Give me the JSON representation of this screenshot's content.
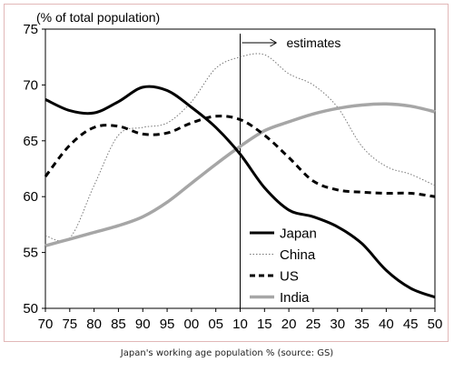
{
  "caption": "Japan's working age population % (source: GS)",
  "chart_data": {
    "type": "line",
    "title": "",
    "ylabel": "(% of total population)",
    "xlabel": "",
    "annotation": "estimates",
    "annotation_at": 2010,
    "x_tick_labels": [
      "70",
      "75",
      "80",
      "85",
      "90",
      "95",
      "00",
      "05",
      "10",
      "15",
      "20",
      "25",
      "30",
      "35",
      "40",
      "45",
      "50"
    ],
    "x_ticks": [
      1970,
      1975,
      1980,
      1985,
      1990,
      1995,
      2000,
      2005,
      2010,
      2015,
      2020,
      2025,
      2030,
      2035,
      2040,
      2045,
      2050
    ],
    "y_ticks": [
      50,
      55,
      60,
      65,
      70,
      75
    ],
    "xlim": [
      1970,
      2050
    ],
    "ylim": [
      50,
      75
    ],
    "legend_position": "lower-right",
    "x": [
      1970,
      1975,
      1980,
      1985,
      1990,
      1995,
      2000,
      2005,
      2010,
      2015,
      2020,
      2025,
      2030,
      2035,
      2040,
      2045,
      2050
    ],
    "series": [
      {
        "name": "Japan",
        "color": "#000000",
        "style": "solid-bold",
        "values": [
          68.7,
          67.7,
          67.5,
          68.5,
          69.8,
          69.5,
          68.0,
          66.2,
          63.8,
          60.8,
          58.8,
          58.2,
          57.3,
          55.8,
          53.4,
          51.8,
          51.0
        ]
      },
      {
        "name": "China",
        "color": "#777777",
        "style": "dotted",
        "values": [
          56.5,
          56.3,
          61.0,
          65.5,
          66.2,
          66.6,
          68.5,
          71.5,
          72.5,
          72.7,
          71.0,
          70.0,
          68.0,
          64.5,
          62.7,
          62.0,
          61.0
        ]
      },
      {
        "name": "US",
        "color": "#000000",
        "style": "dashed",
        "values": [
          61.8,
          64.6,
          66.2,
          66.3,
          65.6,
          65.7,
          66.6,
          67.2,
          66.9,
          65.5,
          63.5,
          61.4,
          60.6,
          60.4,
          60.3,
          60.3,
          60.0
        ]
      },
      {
        "name": "India",
        "color": "#a6a6a6",
        "style": "solid-bold",
        "values": [
          55.6,
          56.2,
          56.8,
          57.4,
          58.2,
          59.5,
          61.2,
          62.9,
          64.5,
          65.9,
          66.7,
          67.4,
          67.9,
          68.2,
          68.3,
          68.1,
          67.6
        ]
      }
    ]
  }
}
